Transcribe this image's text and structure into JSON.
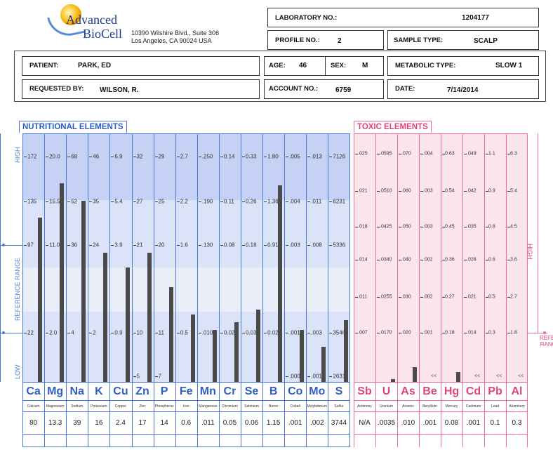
{
  "header": {
    "company": [
      "Advanced",
      "BioCell"
    ],
    "address": [
      "10390 Wilshire Blvd., Suite 306",
      "Los Angeles, CA 90024 USA"
    ],
    "lab_no_label": "LABORATORY NO.:",
    "lab_no": "1204177",
    "profile_label": "PROFILE NO.:",
    "profile": "2",
    "sample_label": "SAMPLE TYPE:",
    "sample": "SCALP",
    "patient_label": "PATIENT:",
    "patient": "PARK, ED",
    "age_label": "AGE:",
    "age": "46",
    "sex_label": "SEX:",
    "sex": "M",
    "metabolic_label": "METABOLIC TYPE:",
    "metabolic": "SLOW 1",
    "requested_label": "REQUESTED BY:",
    "requested": "WILSON, R.",
    "account_label": "ACCOUNT NO.:",
    "account": "6759",
    "date_label": "DATE:",
    "date": "7/14/2014"
  },
  "colors": {
    "nutri_line": "#4a78d8",
    "nutri_high": "#c6d2f5",
    "nutri_mid": "#dbe3f8",
    "nutri_ref": "#e9eef9",
    "toxic_line": "#f06b9a",
    "toxic_bg": "#fbe4ec",
    "bar": "#4a4a4a"
  },
  "nutritional": {
    "title": "NUTRITIONAL ELEMENTS",
    "side_high": "HIGH",
    "side_ref": "REFERENCE RANGE",
    "side_low": "LOW",
    "elements": [
      {
        "sym": "Ca",
        "name": "Calcium",
        "result": "80",
        "ticks": [
          "172",
          "135",
          "97",
          "22"
        ],
        "bar": 0.66
      },
      {
        "sym": "Mg",
        "name": "Magnesium",
        "result": "13.3",
        "ticks": [
          "20.0",
          "15.5",
          "11.0",
          "2.0"
        ],
        "bar": 0.8
      },
      {
        "sym": "Na",
        "name": "Sodium",
        "result": "39",
        "ticks": [
          "68",
          "52",
          "36",
          "4"
        ],
        "bar": 0.73
      },
      {
        "sym": "K",
        "name": "Potassium",
        "result": "16",
        "ticks": [
          "46",
          "35",
          "24",
          "2"
        ],
        "bar": 0.52
      },
      {
        "sym": "Cu",
        "name": "Copper",
        "result": "2.4",
        "ticks": [
          "6.9",
          "5.4",
          "3.9",
          "0.9"
        ],
        "bar": 0.46
      },
      {
        "sym": "Zn",
        "name": "Zinc",
        "result": "17",
        "ticks": [
          "32",
          "27",
          "21",
          "10",
          "5"
        ],
        "bar": 0.52
      },
      {
        "sym": "P",
        "name": "Phosphorus",
        "result": "14",
        "ticks": [
          "29",
          "25",
          "20",
          "11",
          "7"
        ],
        "bar": 0.38
      },
      {
        "sym": "Fe",
        "name": "Iron",
        "result": "0.6",
        "ticks": [
          "2.7",
          "2.2",
          "1.6",
          "0.5"
        ],
        "bar": 0.27
      },
      {
        "sym": "Mn",
        "name": "Manganese",
        "result": ".011",
        "ticks": [
          ".250",
          ".190",
          ".130",
          ".010"
        ],
        "bar": 0.21
      },
      {
        "sym": "Cr",
        "name": "Chromium",
        "result": "0.05",
        "ticks": [
          "0.14",
          "0.11",
          "0.08",
          "0.02"
        ],
        "bar": 0.24
      },
      {
        "sym": "Se",
        "name": "Selenium",
        "result": "0.06",
        "ticks": [
          "0.33",
          "0.26",
          "0.18",
          "0.03"
        ],
        "bar": 0.29
      },
      {
        "sym": "B",
        "name": "Boron",
        "result": "1.15",
        "ticks": [
          "1.80",
          "1.36",
          "0.91",
          "0.02"
        ],
        "bar": 0.79
      },
      {
        "sym": "Co",
        "name": "Cobalt",
        "result": ".001",
        "ticks": [
          ".005",
          ".004",
          ".003",
          ".001",
          ".000"
        ],
        "bar": 0.21
      },
      {
        "sym": "Mo",
        "name": "Molybdenum",
        "result": ".002",
        "ticks": [
          ".013",
          ".011",
          ".008",
          ".003",
          ".001"
        ],
        "bar": 0.14
      },
      {
        "sym": "S",
        "name": "Sulfur",
        "result": "3744",
        "ticks": [
          "7126",
          "6231",
          "5336",
          "3546",
          "2631"
        ],
        "bar": 0.25
      }
    ]
  },
  "toxic": {
    "title": "TOXIC ELEMENTS",
    "side_high": "HIGH",
    "side_ref": "REFERENCE RANGE",
    "elements": [
      {
        "sym": "Sb",
        "name": "Antimony",
        "result": "N/A",
        "ticks": [
          ".025",
          ".021",
          ".018",
          ".014",
          ".011",
          ".007"
        ],
        "bar": 0,
        "flag": ""
      },
      {
        "sym": "U",
        "name": "Uranium",
        "result": ".0035",
        "ticks": [
          ".0595",
          ".0510",
          ".0425",
          ".0340",
          ".0255",
          ".0170"
        ],
        "bar": 0.01,
        "flag": ""
      },
      {
        "sym": "As",
        "name": "Arsenic",
        "result": ".010",
        "ticks": [
          ".070",
          ".060",
          ".050",
          ".040",
          ".030",
          ".020"
        ],
        "bar": 0.06,
        "flag": ""
      },
      {
        "sym": "Be",
        "name": "Beryllium",
        "result": ".001",
        "ticks": [
          ".004",
          ".003",
          ".003",
          ".002",
          ".002",
          ".001"
        ],
        "bar": 0,
        "flag": "<<"
      },
      {
        "sym": "Hg",
        "name": "Mercury",
        "result": "0.08",
        "ticks": [
          "0.63",
          "0.54",
          "0.45",
          "0.36",
          "0.27",
          "0.18"
        ],
        "bar": 0.04,
        "flag": ""
      },
      {
        "sym": "Cd",
        "name": "Cadmium",
        "result": ".001",
        "ticks": [
          ".049",
          ".042",
          ".035",
          ".028",
          ".021",
          ".014"
        ],
        "bar": 0,
        "flag": "<<"
      },
      {
        "sym": "Pb",
        "name": "Lead",
        "result": "0.1",
        "ticks": [
          "1.1",
          "0.9",
          "0.8",
          "0.6",
          "0.5",
          "0.3"
        ],
        "bar": 0,
        "flag": "<<"
      },
      {
        "sym": "Al",
        "name": "Aluminum",
        "result": "0.3",
        "ticks": [
          "6.3",
          "5.4",
          "4.5",
          "3.6",
          "2.7",
          "1.8"
        ],
        "bar": 0,
        "flag": "<<"
      }
    ]
  }
}
